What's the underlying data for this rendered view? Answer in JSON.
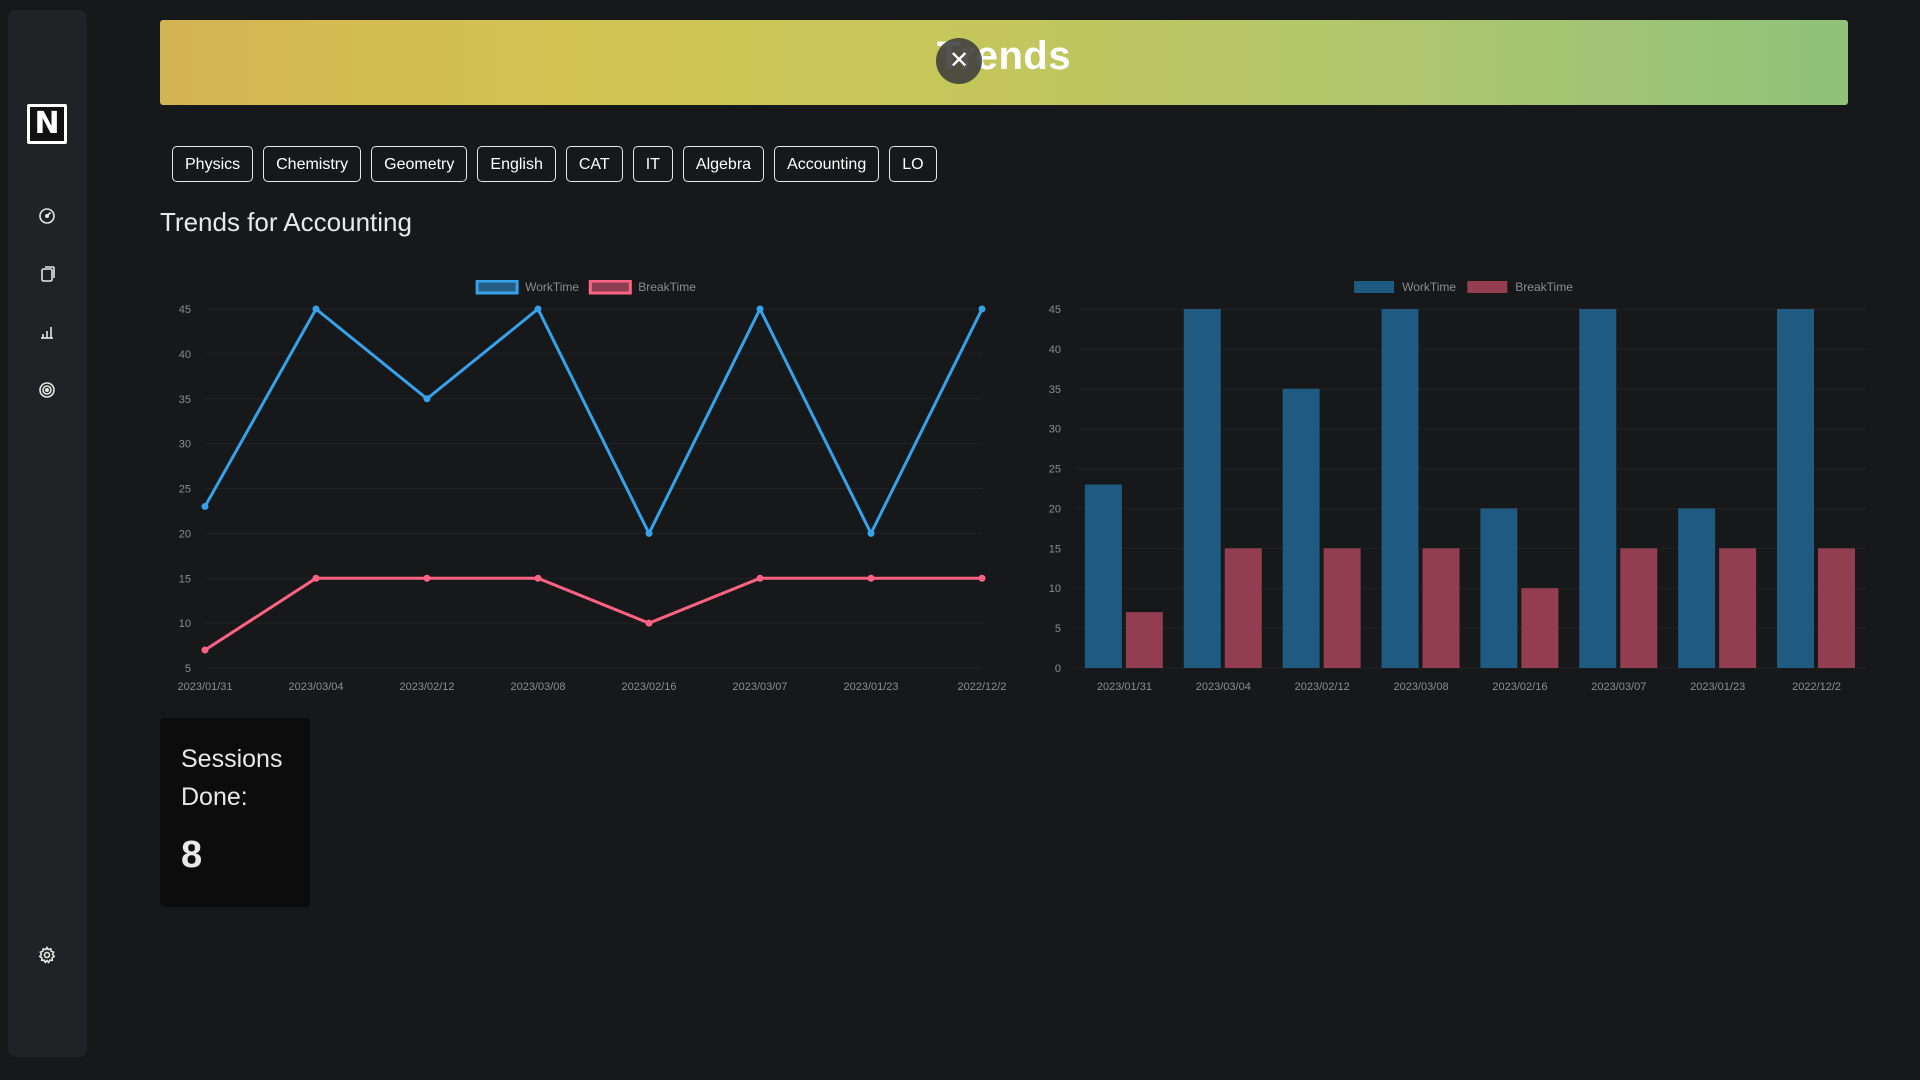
{
  "sidebar": {
    "logo_text": "N",
    "icons": [
      "dashboard-icon",
      "notes-icon",
      "stats-icon",
      "target-icon",
      "settings-icon"
    ]
  },
  "banner": {
    "title": "Trends",
    "close_symbol": "✕"
  },
  "tabs": [
    {
      "label": "Physics"
    },
    {
      "label": "Chemistry"
    },
    {
      "label": "Geometry"
    },
    {
      "label": "English"
    },
    {
      "label": "CAT"
    },
    {
      "label": "IT"
    },
    {
      "label": "Algebra"
    },
    {
      "label": "Accounting"
    },
    {
      "label": "LO"
    }
  ],
  "section_title": "Trends for Accounting",
  "sessions": {
    "label": "Sessions Done:",
    "value": "8"
  },
  "colors": {
    "worktime_line": "#36a2eb",
    "breaktime_line": "#ff6384",
    "worktime_bar": "#1f5b80",
    "breaktime_bar": "#933d50"
  },
  "chart_data": [
    {
      "type": "line",
      "categories": [
        "2023/01/31",
        "2023/03/04",
        "2023/02/12",
        "2023/03/08",
        "2023/02/16",
        "2023/03/07",
        "2023/01/23",
        "2022/12/2"
      ],
      "series": [
        {
          "name": "WorkTime",
          "values": [
            23,
            45,
            35,
            45,
            20,
            45,
            20,
            45
          ]
        },
        {
          "name": "BreakTime",
          "values": [
            7,
            15,
            15,
            15,
            10,
            15,
            15,
            15
          ]
        }
      ],
      "yticks": [
        5,
        10,
        15,
        20,
        25,
        30,
        35,
        40,
        45
      ],
      "ylim": [
        5,
        45
      ],
      "legend": "top"
    },
    {
      "type": "bar",
      "categories": [
        "2023/01/31",
        "2023/03/04",
        "2023/02/12",
        "2023/03/08",
        "2023/02/16",
        "2023/03/07",
        "2023/01/23",
        "2022/12/2"
      ],
      "series": [
        {
          "name": "WorkTime",
          "values": [
            23,
            45,
            35,
            45,
            20,
            45,
            20,
            45
          ]
        },
        {
          "name": "BreakTime",
          "values": [
            7,
            15,
            15,
            15,
            10,
            15,
            15,
            15
          ]
        }
      ],
      "yticks": [
        0,
        5,
        10,
        15,
        20,
        25,
        30,
        35,
        40,
        45
      ],
      "ylim": [
        0,
        45
      ],
      "legend": "top"
    }
  ]
}
